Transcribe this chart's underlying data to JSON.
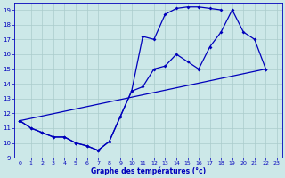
{
  "curve_a": {
    "x": [
      0,
      1,
      2,
      3,
      4,
      5,
      6,
      7,
      8,
      9,
      10,
      11,
      12,
      13,
      14,
      15,
      16,
      17,
      18
    ],
    "y": [
      11.5,
      11.0,
      10.7,
      10.4,
      10.4,
      10.0,
      9.8,
      9.5,
      10.1,
      11.8,
      13.5,
      17.2,
      17.0,
      18.7,
      19.1,
      19.2,
      19.2,
      19.1,
      19.0
    ]
  },
  "curve_b": {
    "x": [
      0,
      1,
      2,
      3,
      4,
      5,
      6,
      7,
      8,
      9,
      10,
      11,
      12,
      13,
      14,
      15,
      16,
      17,
      18,
      19,
      20,
      21,
      22
    ],
    "y": [
      11.5,
      11.0,
      10.7,
      10.4,
      10.4,
      10.0,
      9.8,
      9.5,
      10.1,
      11.8,
      13.5,
      13.8,
      15.0,
      15.2,
      16.0,
      15.5,
      15.0,
      16.5,
      17.5,
      19.0,
      17.5,
      17.0,
      15.0
    ]
  },
  "curve_c": {
    "x": [
      0,
      22
    ],
    "y": [
      11.5,
      15.0
    ]
  },
  "background_color": "#cce8e8",
  "grid_color": "#aacccc",
  "line_color": "#0000bb",
  "xlabel": "Graphe des températures (°c)",
  "xlim": [
    -0.5,
    23.5
  ],
  "ylim": [
    9.0,
    19.5
  ],
  "xticks": [
    0,
    1,
    2,
    3,
    4,
    5,
    6,
    7,
    8,
    9,
    10,
    11,
    12,
    13,
    14,
    15,
    16,
    17,
    18,
    19,
    20,
    21,
    22,
    23
  ],
  "yticks": [
    9,
    10,
    11,
    12,
    13,
    14,
    15,
    16,
    17,
    18,
    19
  ]
}
